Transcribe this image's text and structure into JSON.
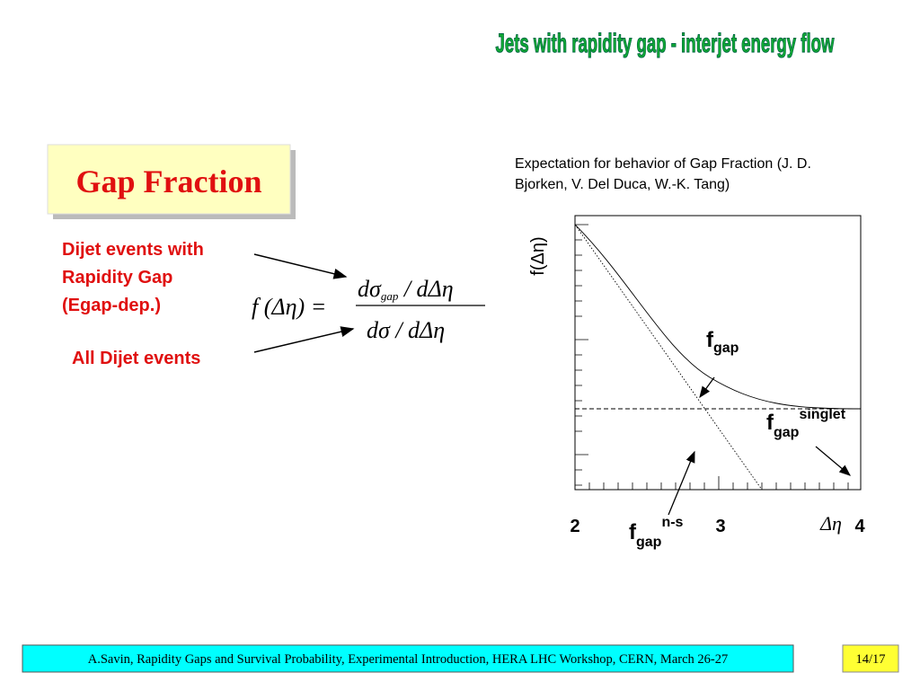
{
  "header": {
    "title": "Jets with rapidity gap - interjet energy flow"
  },
  "box": {
    "title": "Gap Fraction"
  },
  "labels": {
    "numerator": [
      "Dijet events with",
      "Rapidity Gap",
      "(Egap-dep.)"
    ],
    "denominator": "All Dijet events"
  },
  "formula": {
    "lhs": "f (Δη) =",
    "numerator": "dσ",
    "numerator_sub": "gap",
    "numerator_rest": " / dΔη",
    "denominator": "dσ / dΔη"
  },
  "plot": {
    "caption": [
      "Expectation for behavior of Gap Fraction (J. D.",
      "Bjorken, V. Del Duca, W.-K. Tang)"
    ],
    "y_label": "f(Δη)",
    "x_label": "Δη",
    "x_ticks": [
      "2",
      "3",
      "4"
    ],
    "fgap": {
      "main": "f",
      "sub": "gap"
    },
    "fgap_singlet": {
      "main": "f",
      "sub": "gap",
      "sup": "singlet"
    },
    "fgap_ns": {
      "main": "f",
      "sub": "gap",
      "sup": "n-s"
    }
  },
  "footer": {
    "citation": "A.Savin, Rapidity Gaps and Survival Probability, Experimental Introduction, HERA LHC Workshop, CERN, March 26-27",
    "page": "14/17"
  }
}
